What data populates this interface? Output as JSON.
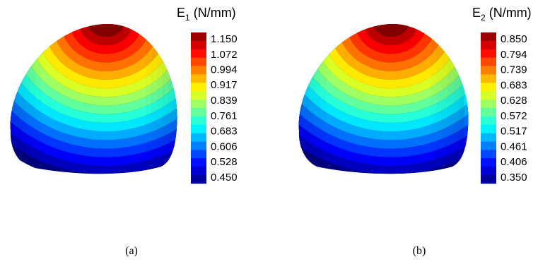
{
  "panels": [
    {
      "title": {
        "symbol": "E",
        "subscript": "1",
        "unit": "(N/mm)"
      },
      "colorbar": {
        "lim": [
          0.45,
          1.15
        ],
        "ticks": [
          {
            "value": 1.15,
            "label": "1.150"
          },
          1.072,
          0.994,
          0.917,
          0.839,
          0.761,
          0.683,
          0.606,
          0.528,
          {
            "value": 0.45,
            "label": "0.450"
          }
        ]
      },
      "caption": "(a)"
    },
    {
      "title": {
        "symbol": "E",
        "subscript": "2",
        "unit": "(N/mm)"
      },
      "colorbar": {
        "lim": [
          0.35,
          0.85
        ],
        "ticks": [
          {
            "value": 0.85,
            "label": "0.850"
          },
          0.794,
          0.739,
          0.683,
          0.628,
          0.572,
          0.517,
          0.461,
          0.406,
          {
            "value": 0.35,
            "label": "0.350"
          }
        ]
      },
      "caption": "(b)"
    }
  ]
}
